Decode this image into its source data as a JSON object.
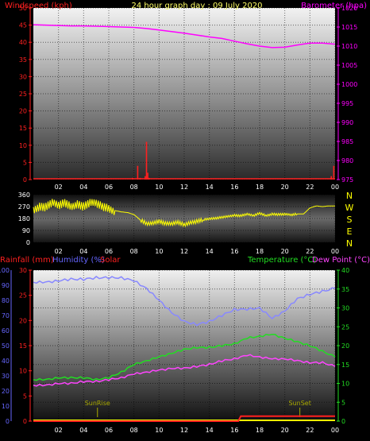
{
  "colors": {
    "wind": "#ff2020",
    "baro": "#ff00ff",
    "dir": "#ffff00",
    "rain": "#ff2020",
    "humidity": "#8888ff",
    "solar": "#ff2020",
    "temperature": "#22dd22",
    "dewpoint": "#ff44ff",
    "title": "#ffff66",
    "axis_left_blue": "#6666ff",
    "white": "#ffffff",
    "compass": "#ffff00",
    "sun_marker": "#aaaa00"
  },
  "chart_data": [
    {
      "type": "line",
      "title": "24 hour graph day : 09 July 2020",
      "left_axis_label": "Windspeed (kph)",
      "right_axis_label": "Barometer (hpa)",
      "left_ylim": [
        0,
        50
      ],
      "left_ticks": [
        "0",
        "5",
        "10",
        "15",
        "20",
        "25",
        "30",
        "35",
        "40",
        "45",
        "50"
      ],
      "right_ylim": [
        975,
        1020
      ],
      "right_ticks": [
        "975",
        "980",
        "985",
        "990",
        "995",
        "1000",
        "1005",
        "1010",
        "1015",
        "1020"
      ],
      "x_ticks": [
        "02",
        "04",
        "06",
        "08",
        "10",
        "12",
        "14",
        "16",
        "18",
        "20",
        "22",
        "00"
      ],
      "grid": true,
      "series": [
        {
          "key": "barometer",
          "axis": "right",
          "x": [
            0,
            1,
            2,
            3,
            4,
            5,
            6,
            7,
            8,
            9,
            10,
            11,
            12,
            13,
            14,
            15,
            16,
            17,
            18,
            19,
            20,
            21,
            22,
            23,
            24
          ],
          "values": [
            1015.6,
            1015.5,
            1015.4,
            1015.3,
            1015.3,
            1015.2,
            1015.1,
            1015.0,
            1014.9,
            1014.6,
            1014.2,
            1013.8,
            1013.4,
            1012.9,
            1012.4,
            1012.0,
            1011.3,
            1010.6,
            1010.0,
            1009.6,
            1009.7,
            1010.3,
            1010.8,
            1010.8,
            1010.5
          ]
        },
        {
          "key": "windspeed",
          "axis": "left",
          "x": [
            7.9,
            8.3,
            8.5,
            8.9,
            9.0,
            9.1,
            9.2,
            23.7,
            23.9
          ],
          "values": [
            0.5,
            4,
            0.5,
            1,
            11,
            2,
            0.5,
            1,
            4
          ]
        }
      ]
    },
    {
      "type": "line",
      "left_ylim": [
        0,
        360
      ],
      "left_ticks": [
        "0",
        "90",
        "180",
        "270",
        "360"
      ],
      "right_labels": [
        "N",
        "W",
        "S",
        "E",
        "N"
      ],
      "x_ticks": [
        "02",
        "04",
        "06",
        "08",
        "10",
        "12",
        "14",
        "16",
        "18",
        "20",
        "22",
        "00"
      ],
      "grid": true,
      "series": [
        {
          "key": "wind_direction",
          "x": [
            0,
            0.5,
            1,
            1.5,
            2,
            2.5,
            3,
            3.5,
            4,
            4.5,
            5,
            5.5,
            6,
            6.5,
            7,
            7.5,
            8,
            8.5,
            9,
            9.5,
            10,
            10.5,
            11,
            11.5,
            12,
            12.5,
            13,
            13.5,
            14,
            14.5,
            15,
            15.5,
            16,
            16.5,
            17,
            17.5,
            18,
            18.5,
            19,
            19.5,
            20,
            20.5,
            21,
            21.5,
            22,
            22.5,
            23,
            23.5,
            24
          ],
          "values": [
            255,
            275,
            265,
            290,
            270,
            300,
            280,
            295,
            270,
            290,
            285,
            270,
            265,
            240,
            230,
            225,
            210,
            170,
            145,
            150,
            160,
            140,
            135,
            150,
            135,
            155,
            160,
            170,
            175,
            180,
            190,
            200,
            205,
            200,
            210,
            200,
            220,
            205,
            215,
            210,
            210,
            205,
            215,
            215,
            260,
            275,
            270,
            275,
            275
          ]
        }
      ]
    },
    {
      "type": "line",
      "legend": [
        "Rainfall (mm)",
        "Humidity (%)",
        "Solar",
        "Temperature (°C)",
        "Dew Point (°C)"
      ],
      "left_outer_ticks": [
        "0",
        "10",
        "20",
        "30",
        "40",
        "50",
        "60",
        "70",
        "80",
        "90",
        "100"
      ],
      "left_inner_ticks": [
        "0",
        "5",
        "10",
        "15",
        "20",
        "25",
        "30"
      ],
      "right_ticks": [
        "0",
        "5",
        "10",
        "15",
        "20",
        "25",
        "30",
        "35",
        "40"
      ],
      "x_ticks": [
        "02",
        "04",
        "06",
        "08",
        "10",
        "12",
        "14",
        "16",
        "18",
        "20",
        "22",
        "00"
      ],
      "annotations": [
        "SunRise",
        "SunSet"
      ],
      "annotation_x": [
        5.1,
        21.2
      ],
      "humidity_ylim": [
        0,
        100
      ],
      "temp_ylim": [
        0,
        40
      ],
      "rain_ylim": [
        0,
        30
      ],
      "grid": true,
      "series": [
        {
          "key": "humidity",
          "x": [
            0,
            1,
            2,
            3,
            4,
            5,
            6,
            7,
            8,
            9,
            10,
            11,
            12,
            13,
            14,
            15,
            16,
            17,
            18,
            19,
            20,
            21,
            22,
            23,
            24
          ],
          "values": [
            92,
            92,
            93,
            94,
            94,
            95,
            95,
            95,
            93,
            88,
            80,
            72,
            66,
            64,
            66,
            70,
            74,
            74,
            75,
            68,
            73,
            81,
            84,
            86,
            88
          ]
        },
        {
          "key": "temperature",
          "x": [
            0,
            1,
            2,
            3,
            4,
            5,
            6,
            7,
            8,
            9,
            10,
            11,
            12,
            13,
            14,
            15,
            16,
            17,
            18,
            19,
            20,
            21,
            22,
            23,
            24
          ],
          "values": [
            11,
            11,
            11.5,
            11.5,
            11.5,
            11,
            11.5,
            13,
            15,
            16,
            17,
            18,
            19,
            19.5,
            19.5,
            20,
            20.5,
            22,
            22.5,
            23,
            22,
            21,
            20,
            18.5,
            17
          ]
        },
        {
          "key": "dewpoint",
          "x": [
            0,
            1,
            2,
            3,
            4,
            5,
            6,
            7,
            8,
            9,
            10,
            11,
            12,
            13,
            14,
            15,
            16,
            17,
            18,
            19,
            20,
            21,
            22,
            23,
            24
          ],
          "values": [
            9.5,
            9.5,
            10,
            10,
            10.5,
            10.5,
            11,
            11.5,
            12.5,
            13,
            13.5,
            14,
            14,
            14.5,
            15,
            16,
            16.5,
            17.5,
            17,
            16.5,
            16.5,
            16,
            15.5,
            15.5,
            14.5
          ]
        },
        {
          "key": "rainfall",
          "x": [
            0,
            16.3,
            16.5,
            23.7,
            24
          ],
          "values": [
            0,
            0,
            1,
            1,
            1
          ]
        },
        {
          "key": "solar",
          "x": [
            0,
            24
          ],
          "values": [
            0,
            0
          ]
        }
      ]
    }
  ]
}
